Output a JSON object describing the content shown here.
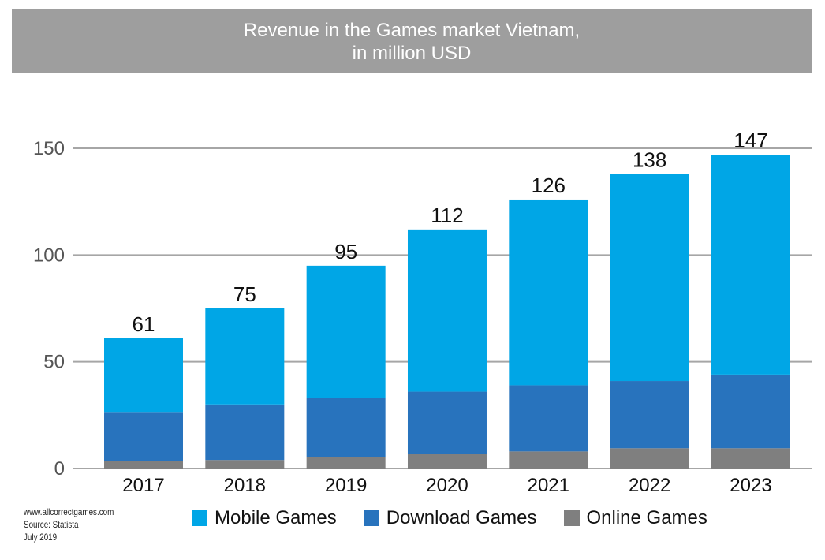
{
  "chart_data": {
    "type": "bar",
    "stacked": true,
    "title": "Revenue in the Games market Vietnam,",
    "subtitle": "in million USD",
    "categories": [
      "2017",
      "2018",
      "2019",
      "2020",
      "2021",
      "2022",
      "2023"
    ],
    "series": [
      {
        "name": "Online Games",
        "color": "#7f7f7f",
        "values": [
          3.5,
          4,
          5.5,
          7,
          8,
          9.5,
          9.5
        ]
      },
      {
        "name": "Download Games",
        "color": "#2873bd",
        "values": [
          23,
          26,
          27.5,
          29,
          31,
          31.5,
          34.5
        ]
      },
      {
        "name": "Mobile Games",
        "color": "#00a6e6",
        "values": [
          34.5,
          45,
          62,
          76,
          87,
          97,
          103
        ]
      }
    ],
    "totals": [
      61,
      75,
      95,
      112,
      126,
      138,
      147
    ],
    "ylim": [
      0,
      150
    ],
    "yticks": [
      0,
      50,
      100,
      150
    ],
    "grid": true,
    "legend_position": "bottom",
    "legend": [
      "Mobile Games",
      "Download Games",
      "Online Games"
    ]
  },
  "footer": {
    "website": "www.allcorrectgames.com",
    "source": "Source: Statista",
    "date": "July 2019"
  },
  "colors": {
    "title_background": "#9e9e9e",
    "gridline": "#a6a6a6"
  }
}
